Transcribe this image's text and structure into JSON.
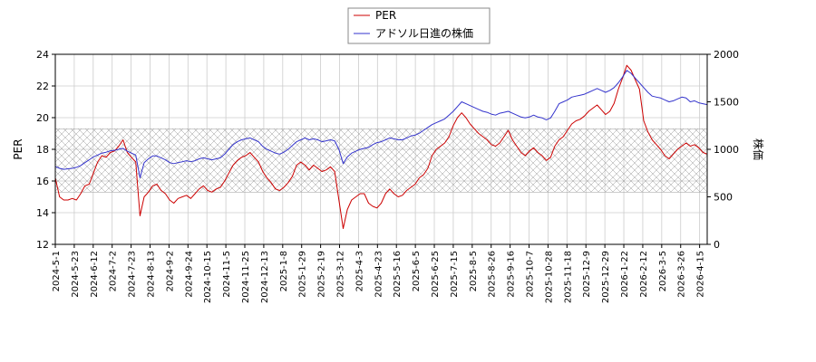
{
  "chart_data": {
    "type": "line",
    "ylabel_left": "PER",
    "ylabel_right": "株価",
    "ylim_left": [
      12,
      24
    ],
    "ylim_right": [
      0,
      2000
    ],
    "yticks_left": [
      12,
      14,
      16,
      18,
      20,
      22,
      24
    ],
    "yticks_right": [
      0,
      500,
      1000,
      1500,
      2000
    ],
    "grid": true,
    "legend_placement": "top-center",
    "band_left": [
      15.3,
      19.3
    ],
    "x_ticks": [
      "2024-5-1",
      "2024-5-23",
      "2024-6-12",
      "2024-7-2",
      "2024-7-23",
      "2024-8-13",
      "2024-9-2",
      "2024-9-24",
      "2024-10-15",
      "2024-11-5",
      "2024-11-25",
      "2024-12-13",
      "2025-1-8",
      "2025-1-29",
      "2025-2-19",
      "2025-3-12",
      "2025-4-3",
      "2025-4-23",
      "2025-5-16",
      "2025-6-5",
      "2025-6-25",
      "2025-7-15",
      "2025-8-5",
      "2025-8-26",
      "2025-9-16",
      "2025-10-7",
      "2025-10-28",
      "2025-11-18",
      "2025-12-9",
      "2025-12-29",
      "2026-1-22",
      "2026-2-12",
      "2026-3-5",
      "2026-3-26",
      "2026-4-15"
    ],
    "series": [
      {
        "name": "PER",
        "color": "#cc0000",
        "axis": "left",
        "values": [
          16.2,
          15.0,
          14.8,
          14.8,
          14.9,
          14.8,
          15.2,
          15.7,
          15.8,
          16.5,
          17.2,
          17.6,
          17.5,
          17.8,
          17.9,
          18.2,
          18.6,
          17.8,
          17.5,
          17.2,
          13.8,
          15.0,
          15.3,
          15.7,
          15.8,
          15.4,
          15.2,
          14.8,
          14.6,
          14.9,
          15.0,
          15.1,
          14.9,
          15.2,
          15.5,
          15.7,
          15.4,
          15.3,
          15.5,
          15.6,
          16.0,
          16.5,
          17.0,
          17.3,
          17.5,
          17.6,
          17.8,
          17.5,
          17.2,
          16.6,
          16.2,
          15.9,
          15.5,
          15.4,
          15.6,
          15.9,
          16.3,
          17.0,
          17.2,
          17.0,
          16.7,
          17.0,
          16.8,
          16.6,
          16.7,
          16.9,
          16.6,
          14.8,
          13.0,
          14.2,
          14.8,
          15.0,
          15.2,
          15.2,
          14.6,
          14.4,
          14.3,
          14.6,
          15.2,
          15.5,
          15.2,
          15.0,
          15.1,
          15.4,
          15.6,
          15.8,
          16.2,
          16.4,
          16.8,
          17.6,
          18.0,
          18.2,
          18.4,
          18.8,
          19.5,
          20.0,
          20.3,
          20.0,
          19.6,
          19.3,
          19.0,
          18.8,
          18.6,
          18.3,
          18.2,
          18.4,
          18.8,
          19.2,
          18.6,
          18.2,
          17.8,
          17.6,
          17.9,
          18.1,
          17.8,
          17.6,
          17.3,
          17.5,
          18.2,
          18.6,
          18.8,
          19.2,
          19.6,
          19.8,
          19.9,
          20.1,
          20.4,
          20.6,
          20.8,
          20.5,
          20.2,
          20.4,
          20.9,
          21.8,
          22.5,
          23.3,
          23.0,
          22.4,
          21.8,
          19.8,
          19.1,
          18.6,
          18.3,
          18.0,
          17.6,
          17.4,
          17.7,
          18.0,
          18.2,
          18.4,
          18.2,
          18.3,
          18.1,
          17.8,
          17.7
        ]
      },
      {
        "name": "アドソル日進の株価",
        "color": "#3333cc",
        "axis": "right",
        "values": [
          820,
          800,
          790,
          795,
          800,
          810,
          830,
          860,
          890,
          920,
          940,
          960,
          970,
          985,
          990,
          1000,
          1010,
          980,
          960,
          940,
          700,
          860,
          900,
          930,
          930,
          910,
          890,
          860,
          850,
          860,
          870,
          880,
          870,
          880,
          900,
          910,
          900,
          890,
          900,
          910,
          950,
          1000,
          1050,
          1080,
          1100,
          1110,
          1120,
          1100,
          1080,
          1030,
          1000,
          980,
          960,
          950,
          970,
          1000,
          1040,
          1080,
          1100,
          1120,
          1100,
          1110,
          1100,
          1080,
          1090,
          1100,
          1090,
          1000,
          850,
          920,
          960,
          980,
          1000,
          1010,
          1020,
          1050,
          1070,
          1080,
          1100,
          1120,
          1110,
          1100,
          1100,
          1120,
          1140,
          1150,
          1170,
          1200,
          1230,
          1260,
          1280,
          1300,
          1320,
          1360,
          1400,
          1450,
          1500,
          1480,
          1460,
          1440,
          1420,
          1400,
          1390,
          1370,
          1360,
          1380,
          1390,
          1400,
          1380,
          1360,
          1340,
          1330,
          1340,
          1360,
          1340,
          1330,
          1310,
          1330,
          1400,
          1480,
          1500,
          1520,
          1550,
          1560,
          1570,
          1580,
          1600,
          1620,
          1640,
          1620,
          1600,
          1620,
          1650,
          1700,
          1760,
          1830,
          1800,
          1750,
          1700,
          1650,
          1600,
          1560,
          1550,
          1540,
          1520,
          1500,
          1510,
          1530,
          1550,
          1540,
          1500,
          1510,
          1490,
          1480,
          1470
        ]
      }
    ]
  }
}
